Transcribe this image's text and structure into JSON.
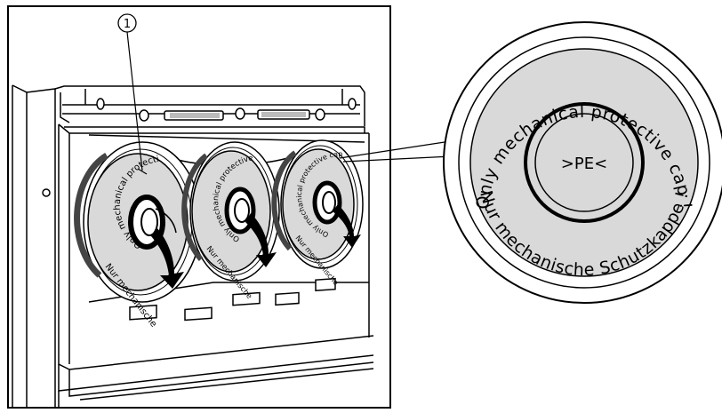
{
  "callout": {
    "number": "1"
  },
  "cap_label": {
    "top": "Only mechanical protective cap !",
    "bottom": "Nur mechanische Schutzkappe !",
    "center": ">PE<"
  },
  "small_cap_label": {
    "top": "Only mechanical protective cap ! ",
    "bottom": "Nur mechanische"
  },
  "colors": {
    "line": "#000000",
    "cap_fill": "#d9d9d9",
    "background": "#ffffff",
    "shadow": "#9a9a9a"
  },
  "icons": [
    "rotation-arrow-icon",
    "callout-number-icon"
  ]
}
